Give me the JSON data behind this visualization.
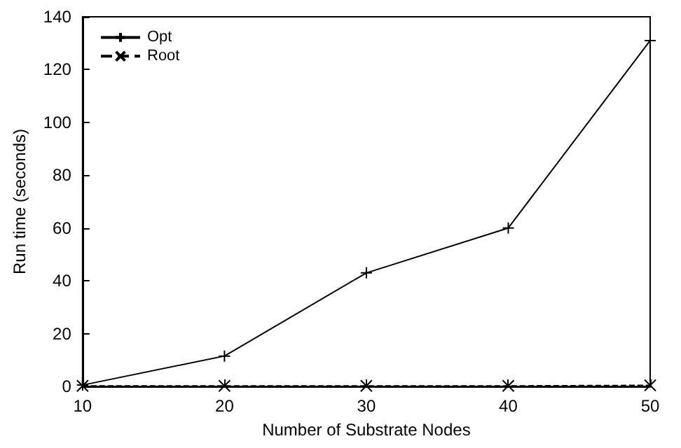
{
  "chart_data": {
    "type": "line",
    "xlabel": "Number of Substrate Nodes",
    "ylabel": "Run time (seconds)",
    "x": [
      10,
      20,
      30,
      40,
      50
    ],
    "series": [
      {
        "name": "Opt",
        "color": "#000000",
        "values": [
          0.5,
          11.5,
          43,
          60,
          131
        ],
        "marker": "cross",
        "line_style": "solid"
      },
      {
        "name": "Root",
        "color": "#000000",
        "values": [
          0.2,
          0.2,
          0.2,
          0.2,
          0.4
        ],
        "marker": "x",
        "line_style": "dashed"
      }
    ],
    "xlim": [
      10,
      50
    ],
    "xticks": [
      10,
      20,
      30,
      40,
      50
    ],
    "ylim": [
      0,
      140
    ],
    "yticks": [
      0,
      20,
      40,
      60,
      80,
      100,
      120,
      140
    ],
    "legend": "top left"
  }
}
